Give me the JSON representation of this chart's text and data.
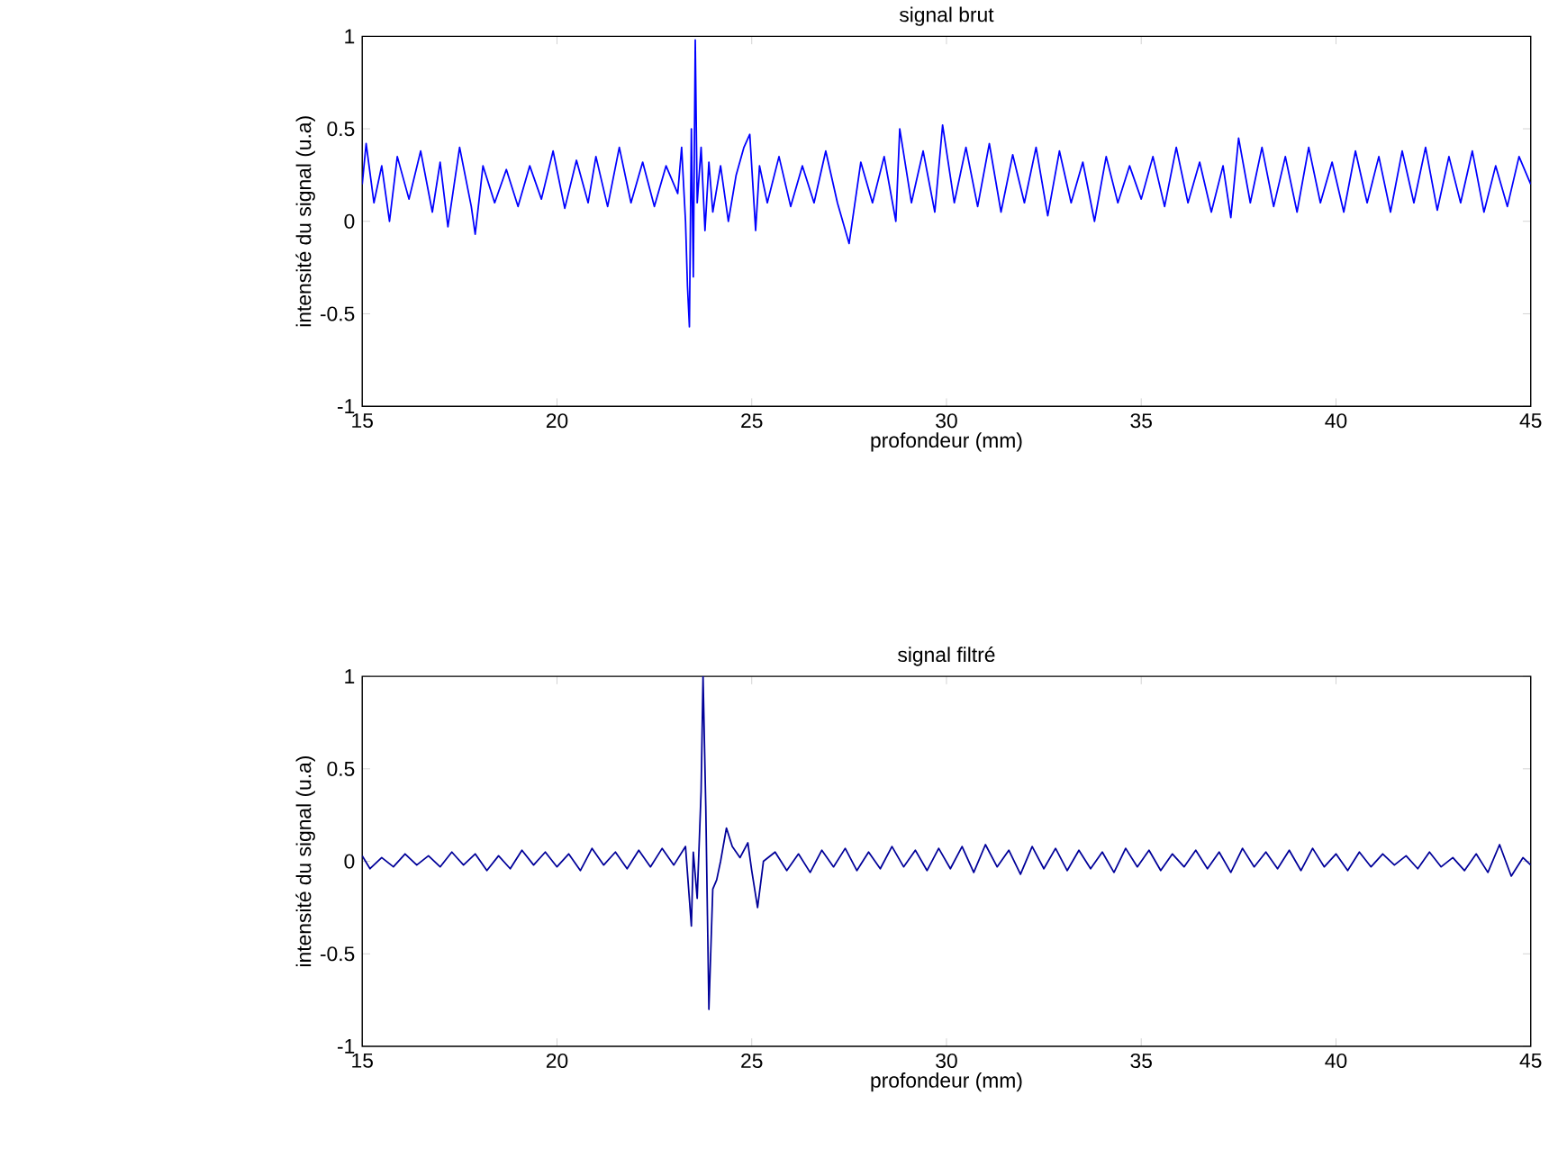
{
  "chart_data": [
    {
      "type": "line",
      "title": "signal brut",
      "xlabel": "profondeur (mm)",
      "ylabel": "intensité du signal (u.a)",
      "color": "#0000ff",
      "xlim": [
        15,
        45
      ],
      "ylim": [
        -1,
        1
      ],
      "xticks": [
        15,
        20,
        25,
        30,
        35,
        40,
        45
      ],
      "yticks": [
        -1,
        -0.5,
        0,
        0.5,
        1
      ],
      "x": [
        15.0,
        15.1,
        15.3,
        15.5,
        15.7,
        15.9,
        16.2,
        16.5,
        16.8,
        17.0,
        17.2,
        17.5,
        17.8,
        17.9,
        18.1,
        18.4,
        18.7,
        19.0,
        19.3,
        19.6,
        19.9,
        20.2,
        20.5,
        20.8,
        21.0,
        21.3,
        21.6,
        21.9,
        22.2,
        22.5,
        22.8,
        23.1,
        23.2,
        23.3,
        23.35,
        23.4,
        23.45,
        23.5,
        23.55,
        23.6,
        23.7,
        23.8,
        23.9,
        24.0,
        24.2,
        24.4,
        24.6,
        24.8,
        24.95,
        25.1,
        25.2,
        25.4,
        25.7,
        26.0,
        26.3,
        26.6,
        26.9,
        27.2,
        27.5,
        27.8,
        28.1,
        28.4,
        28.7,
        28.8,
        29.1,
        29.4,
        29.7,
        29.9,
        30.2,
        30.5,
        30.8,
        31.1,
        31.4,
        31.7,
        32.0,
        32.3,
        32.6,
        32.9,
        33.2,
        33.5,
        33.8,
        34.1,
        34.4,
        34.7,
        35.0,
        35.3,
        35.6,
        35.9,
        36.2,
        36.5,
        36.8,
        37.1,
        37.3,
        37.5,
        37.8,
        38.1,
        38.4,
        38.7,
        39.0,
        39.3,
        39.6,
        39.9,
        40.2,
        40.5,
        40.8,
        41.1,
        41.4,
        41.7,
        42.0,
        42.3,
        42.6,
        42.9,
        43.2,
        43.5,
        43.8,
        44.1,
        44.4,
        44.7,
        45.0
      ],
      "values": [
        0.2,
        0.42,
        0.1,
        0.3,
        0.0,
        0.35,
        0.12,
        0.38,
        0.05,
        0.32,
        -0.03,
        0.4,
        0.08,
        -0.07,
        0.3,
        0.1,
        0.28,
        0.08,
        0.3,
        0.12,
        0.38,
        0.07,
        0.33,
        0.1,
        0.35,
        0.08,
        0.4,
        0.1,
        0.32,
        0.08,
        0.3,
        0.15,
        0.4,
        0.0,
        -0.35,
        -0.57,
        0.5,
        -0.3,
        0.98,
        0.1,
        0.4,
        -0.05,
        0.32,
        0.05,
        0.3,
        0.0,
        0.25,
        0.4,
        0.47,
        -0.05,
        0.3,
        0.1,
        0.35,
        0.08,
        0.3,
        0.1,
        0.38,
        0.1,
        -0.12,
        0.32,
        0.1,
        0.35,
        0.0,
        0.5,
        0.1,
        0.38,
        0.05,
        0.52,
        0.1,
        0.4,
        0.08,
        0.42,
        0.05,
        0.36,
        0.1,
        0.4,
        0.03,
        0.38,
        0.1,
        0.32,
        0.0,
        0.35,
        0.1,
        0.3,
        0.12,
        0.35,
        0.08,
        0.4,
        0.1,
        0.32,
        0.05,
        0.3,
        0.02,
        0.45,
        0.1,
        0.4,
        0.08,
        0.35,
        0.05,
        0.4,
        0.1,
        0.32,
        0.05,
        0.38,
        0.1,
        0.35,
        0.05,
        0.38,
        0.1,
        0.4,
        0.06,
        0.35,
        0.1,
        0.38,
        0.05,
        0.3,
        0.08,
        0.35,
        0.2
      ]
    },
    {
      "type": "line",
      "title": "signal filtré",
      "xlabel": "profondeur (mm)",
      "ylabel": "intensité du signal (u.a)",
      "color": "#000099",
      "xlim": [
        15,
        45
      ],
      "ylim": [
        -1,
        1
      ],
      "xticks": [
        15,
        20,
        25,
        30,
        35,
        40,
        45
      ],
      "yticks": [
        -1,
        -0.5,
        0,
        0.5,
        1
      ],
      "x": [
        15.0,
        15.2,
        15.5,
        15.8,
        16.1,
        16.4,
        16.7,
        17.0,
        17.3,
        17.6,
        17.9,
        18.2,
        18.5,
        18.8,
        19.1,
        19.4,
        19.7,
        20.0,
        20.3,
        20.6,
        20.9,
        21.2,
        21.5,
        21.8,
        22.1,
        22.4,
        22.7,
        23.0,
        23.3,
        23.45,
        23.5,
        23.6,
        23.7,
        23.75,
        23.82,
        23.9,
        24.0,
        24.1,
        24.2,
        24.35,
        24.5,
        24.7,
        24.9,
        25.0,
        25.15,
        25.3,
        25.6,
        25.9,
        26.2,
        26.5,
        26.8,
        27.1,
        27.4,
        27.7,
        28.0,
        28.3,
        28.6,
        28.9,
        29.2,
        29.5,
        29.8,
        30.1,
        30.4,
        30.7,
        31.0,
        31.3,
        31.6,
        31.9,
        32.2,
        32.5,
        32.8,
        33.1,
        33.4,
        33.7,
        34.0,
        34.3,
        34.6,
        34.9,
        35.2,
        35.5,
        35.8,
        36.1,
        36.4,
        36.7,
        37.0,
        37.3,
        37.6,
        37.9,
        38.2,
        38.5,
        38.8,
        39.1,
        39.4,
        39.7,
        40.0,
        40.3,
        40.6,
        40.9,
        41.2,
        41.5,
        41.8,
        42.1,
        42.4,
        42.7,
        43.0,
        43.3,
        43.6,
        43.9,
        44.2,
        44.5,
        44.8,
        45.0
      ],
      "values": [
        0.03,
        -0.04,
        0.02,
        -0.03,
        0.04,
        -0.02,
        0.03,
        -0.03,
        0.05,
        -0.02,
        0.04,
        -0.05,
        0.03,
        -0.04,
        0.06,
        -0.02,
        0.05,
        -0.03,
        0.04,
        -0.05,
        0.07,
        -0.02,
        0.05,
        -0.04,
        0.06,
        -0.03,
        0.07,
        -0.02,
        0.08,
        -0.35,
        0.05,
        -0.2,
        0.38,
        1.0,
        0.3,
        -0.8,
        -0.15,
        -0.1,
        0.0,
        0.18,
        0.08,
        0.02,
        0.1,
        -0.05,
        -0.25,
        0.0,
        0.05,
        -0.05,
        0.04,
        -0.06,
        0.06,
        -0.03,
        0.07,
        -0.05,
        0.05,
        -0.04,
        0.08,
        -0.03,
        0.06,
        -0.05,
        0.07,
        -0.04,
        0.08,
        -0.06,
        0.09,
        -0.03,
        0.06,
        -0.07,
        0.08,
        -0.04,
        0.07,
        -0.05,
        0.06,
        -0.04,
        0.05,
        -0.06,
        0.07,
        -0.03,
        0.06,
        -0.05,
        0.04,
        -0.03,
        0.06,
        -0.04,
        0.05,
        -0.06,
        0.07,
        -0.03,
        0.05,
        -0.04,
        0.06,
        -0.05,
        0.07,
        -0.03,
        0.04,
        -0.05,
        0.05,
        -0.03,
        0.04,
        -0.02,
        0.03,
        -0.04,
        0.05,
        -0.03,
        0.02,
        -0.05,
        0.04,
        -0.06,
        0.09,
        -0.08,
        0.02,
        -0.02
      ]
    }
  ]
}
